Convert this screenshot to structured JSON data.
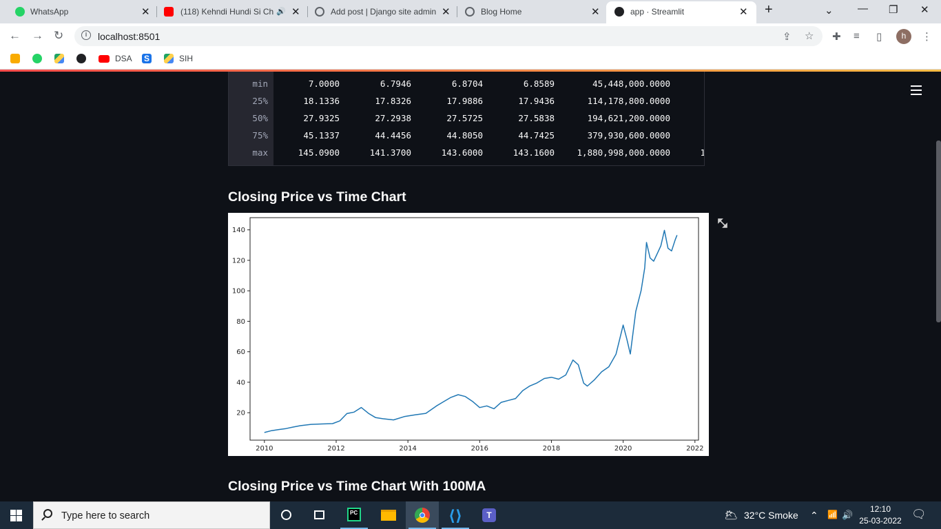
{
  "browser": {
    "tabs": [
      {
        "title": "WhatsApp",
        "favicon": "whatsapp-icon",
        "color": "#25d366"
      },
      {
        "title": "(118) Kehndi Hundi Si Ch",
        "favicon": "youtube-icon",
        "color": "#ff0000"
      },
      {
        "title": "Add post | Django site admin",
        "favicon": "globe-icon",
        "color": "#5f6368"
      },
      {
        "title": "Blog Home",
        "favicon": "globe-icon",
        "color": "#5f6368"
      },
      {
        "title": "app · Streamlit",
        "favicon": "streamlit-icon",
        "color": "#202124",
        "active": true
      }
    ],
    "url": "localhost:8501",
    "profile_initial": "h",
    "bookmarks": [
      {
        "label": "",
        "icon": "classroom-icon",
        "color": "#f9ab00"
      },
      {
        "label": "",
        "icon": "whatsapp-icon",
        "color": "#25d366"
      },
      {
        "label": "",
        "icon": "drive-icon",
        "color": "#1fa463"
      },
      {
        "label": "",
        "icon": "github-icon",
        "color": "#202124"
      },
      {
        "label": "DSA",
        "icon": "youtube-icon",
        "color": "#ff0000"
      },
      {
        "label": "",
        "icon": "s-icon",
        "color": "#1a73e8"
      },
      {
        "label": "SIH",
        "icon": "drive-icon",
        "color": "#1fa463"
      }
    ]
  },
  "stats_table": {
    "rows": [
      {
        "label": "min",
        "values": [
          "7.0000",
          "6.7946",
          "6.8704",
          "6.8589",
          "45,448,000.0000",
          ""
        ]
      },
      {
        "label": "25%",
        "values": [
          "18.1336",
          "17.8326",
          "17.9886",
          "17.9436",
          "114,178,800.0000",
          ""
        ]
      },
      {
        "label": "50%",
        "values": [
          "27.9325",
          "27.2938",
          "27.5725",
          "27.5838",
          "194,621,200.0000",
          ""
        ]
      },
      {
        "label": "75%",
        "values": [
          "45.1337",
          "44.4456",
          "44.8050",
          "44.7425",
          "379,930,600.0000",
          ""
        ]
      },
      {
        "label": "max",
        "values": [
          "145.0900",
          "141.3700",
          "143.6000",
          "143.1600",
          "1,880,998,000.0000",
          "1"
        ]
      }
    ]
  },
  "section1_title": "Closing Price vs Time Chart",
  "section2_title": "Closing Price vs Time Chart With 100MA",
  "chart_data": {
    "type": "line",
    "title": "",
    "xlabel": "",
    "ylabel": "",
    "xlim": [
      2009.6,
      2022.1
    ],
    "ylim": [
      2,
      148
    ],
    "x_ticks": [
      2010,
      2012,
      2014,
      2016,
      2018,
      2020,
      2022
    ],
    "y_ticks": [
      20,
      40,
      60,
      80,
      100,
      120,
      140
    ],
    "grid": false,
    "line_color": "#1f77b4",
    "series": [
      {
        "x": [
          2010.0,
          2010.2,
          2010.4,
          2010.6,
          2010.8,
          2011.0,
          2011.3,
          2011.6,
          2011.9,
          2012.1,
          2012.3,
          2012.5,
          2012.7,
          2012.9,
          2013.1,
          2013.3,
          2013.6,
          2013.9,
          2014.2,
          2014.5,
          2014.8,
          2015.0,
          2015.2,
          2015.4,
          2015.6,
          2015.8,
          2016.0,
          2016.2,
          2016.4,
          2016.6,
          2016.8,
          2017.0,
          2017.2,
          2017.4,
          2017.6,
          2017.8,
          2018.0,
          2018.2,
          2018.4,
          2018.6,
          2018.75,
          2018.9,
          2019.0,
          2019.2,
          2019.4,
          2019.6,
          2019.8,
          2020.0,
          2020.1,
          2020.2,
          2020.35,
          2020.5,
          2020.6,
          2020.65,
          2020.75,
          2020.85,
          2020.95,
          2021.05,
          2021.15,
          2021.25,
          2021.35,
          2021.45,
          2021.5
        ],
        "y": [
          7,
          8,
          8.5,
          9,
          10,
          11,
          12,
          12.5,
          13,
          15,
          20,
          21,
          24,
          20,
          17,
          16,
          15,
          17,
          18,
          19,
          24,
          27,
          30,
          32,
          31,
          28,
          24,
          25,
          23,
          27,
          28,
          29,
          34,
          37,
          39,
          42,
          43,
          42,
          45,
          55,
          52,
          40,
          38,
          42,
          47,
          50,
          58,
          77,
          68,
          58,
          86,
          100,
          115,
          132,
          122,
          120,
          125,
          130,
          140,
          128,
          126,
          133,
          136
        ]
      }
    ]
  },
  "taskbar": {
    "search_placeholder": "Type here to search",
    "weather": "32°C  Smoke",
    "time": "12:10",
    "date": "25-03-2022"
  }
}
